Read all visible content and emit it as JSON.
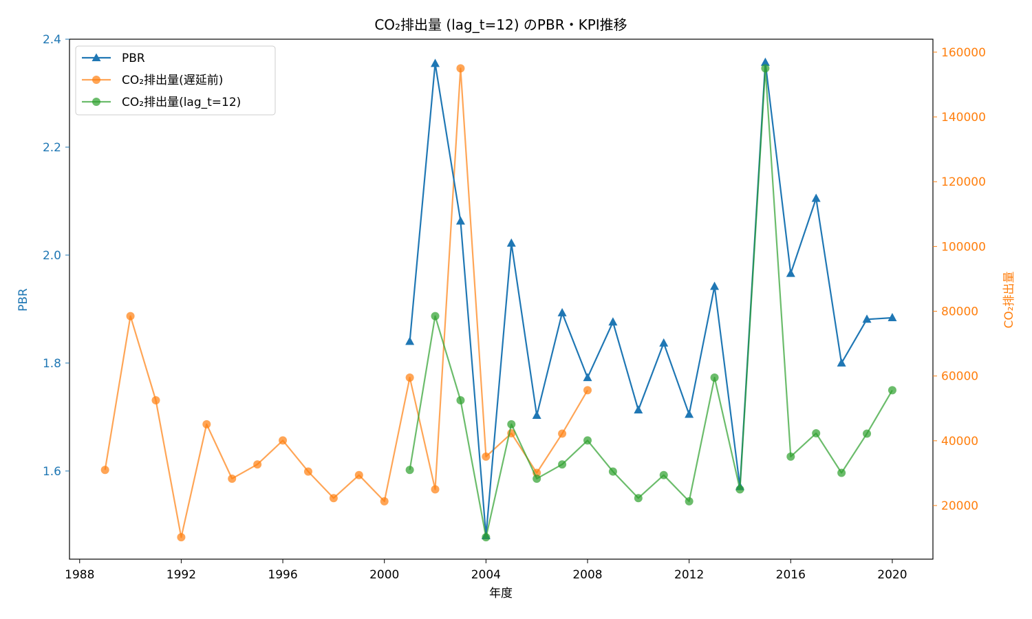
{
  "chart_data": {
    "type": "line",
    "title": "CO₂排出量 (lag_t=12) のPBR・KPI推移",
    "xlabel": "年度",
    "ylabel_left": "PBR",
    "ylabel_right": "CO₂排出量",
    "xlim": [
      1987.6,
      2021.6
    ],
    "ylim_left": [
      1.4367,
      2.4
    ],
    "ylim_right": [
      3440,
      164000
    ],
    "x_ticks": [
      "1988",
      "1992",
      "1996",
      "2000",
      "2004",
      "2008",
      "2012",
      "2016",
      "2020"
    ],
    "y_left_ticks": [
      "1.6",
      "1.8",
      "2.0",
      "2.2",
      "2.4"
    ],
    "y_right_ticks": [
      "20000",
      "40000",
      "60000",
      "80000",
      "100000",
      "120000",
      "140000",
      "160000"
    ],
    "grid": false,
    "legend_position": "top-left",
    "colors": {
      "pbr": "#1f77b4",
      "pre": "#ff7f0e",
      "lag": "#2ca02c",
      "left_axis": "#1f77b4",
      "right_axis": "#ff7f0e"
    },
    "series": [
      {
        "name": "PBR",
        "axis": "left",
        "marker": "triangle",
        "x": [
          2001,
          2002,
          2003,
          2004,
          2005,
          2006,
          2007,
          2008,
          2009,
          2010,
          2011,
          2012,
          2013,
          2014,
          2015,
          2016,
          2017,
          2018,
          2019,
          2020
        ],
        "values": [
          1.84,
          2.355,
          2.063,
          1.48,
          2.022,
          1.703,
          1.893,
          1.773,
          1.876,
          1.713,
          1.837,
          1.705,
          1.942,
          1.571,
          2.357,
          1.966,
          2.105,
          1.8,
          1.881,
          1.884
        ]
      },
      {
        "name": "CO₂排出量(遅延前)",
        "axis": "right",
        "marker": "circle",
        "x": [
          1989,
          1990,
          1991,
          1992,
          1993,
          1994,
          1995,
          1996,
          1997,
          1998,
          1999,
          2000,
          2001,
          2002,
          2003,
          2004,
          2005,
          2006,
          2007,
          2008
        ],
        "values": [
          31000,
          78500,
          52500,
          10200,
          45100,
          28300,
          32700,
          40100,
          30500,
          22300,
          29400,
          21300,
          59500,
          25000,
          155000,
          35100,
          42300,
          30100,
          42200,
          55600
        ]
      },
      {
        "name": "CO₂排出量(lag_t=12)",
        "axis": "right",
        "marker": "circle",
        "x": [
          2001,
          2002,
          2003,
          2004,
          2005,
          2006,
          2007,
          2008,
          2009,
          2010,
          2011,
          2012,
          2013,
          2014,
          2015,
          2016,
          2017,
          2018,
          2019,
          2020
        ],
        "values": [
          31000,
          78500,
          52500,
          10200,
          45100,
          28300,
          32700,
          40100,
          30500,
          22300,
          29400,
          21300,
          59500,
          25000,
          155000,
          35100,
          42300,
          30100,
          42200,
          55600
        ]
      }
    ]
  }
}
